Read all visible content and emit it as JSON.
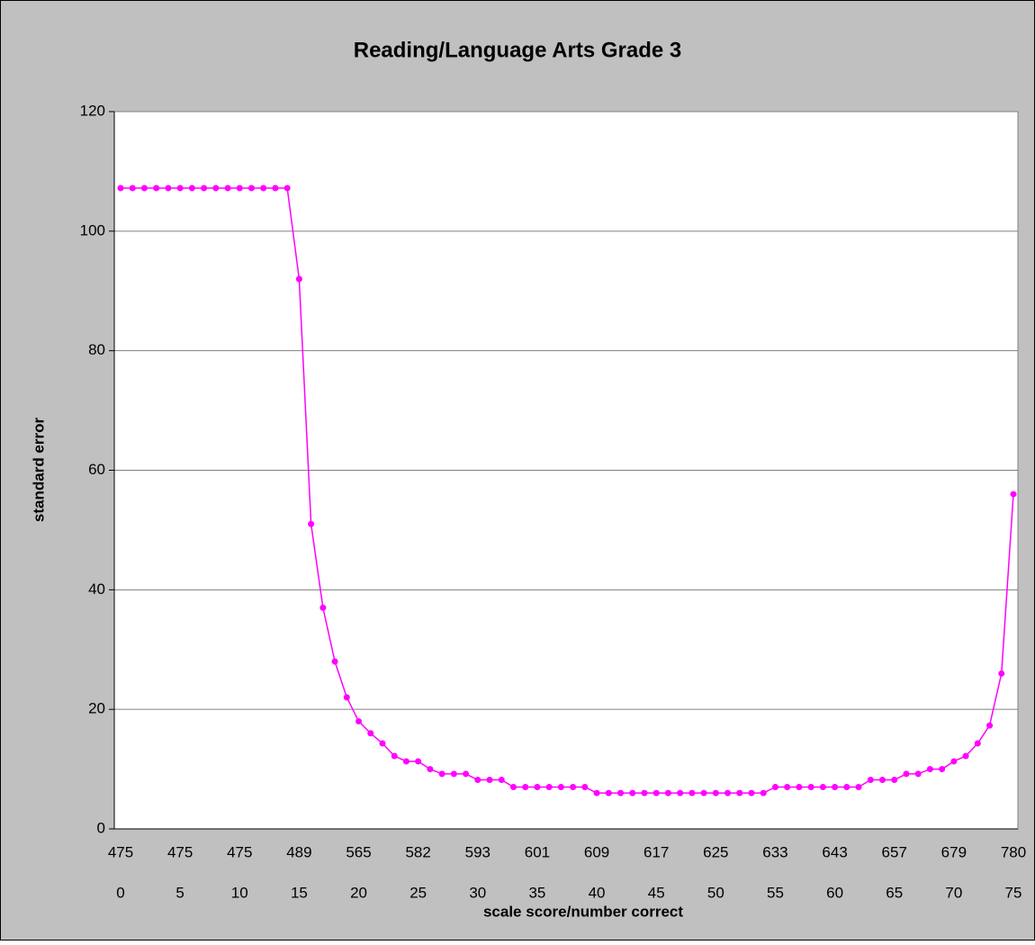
{
  "chart_data": {
    "type": "line",
    "title": "Reading/Language Arts Grade 3",
    "y_label": "standard error",
    "x_label": "scale score/number correct",
    "categories": [
      "475",
      null,
      null,
      null,
      null,
      "475",
      null,
      null,
      null,
      null,
      "475",
      null,
      null,
      null,
      null,
      "489",
      null,
      null,
      null,
      null,
      "565",
      null,
      null,
      null,
      null,
      "582",
      null,
      null,
      null,
      null,
      "593",
      null,
      null,
      null,
      null,
      "601",
      null,
      null,
      null,
      null,
      "609",
      null,
      null,
      null,
      null,
      "617",
      null,
      null,
      null,
      null,
      "625",
      null,
      null,
      null,
      null,
      "633",
      null,
      null,
      null,
      null,
      "643",
      null,
      null,
      null,
      null,
      "657",
      null,
      null,
      null,
      null,
      "679",
      null,
      null,
      null,
      null,
      "780"
    ],
    "subcategories": [
      "0",
      null,
      null,
      null,
      null,
      "5",
      null,
      null,
      null,
      null,
      "10",
      null,
      null,
      null,
      null,
      "15",
      null,
      null,
      null,
      null,
      "20",
      null,
      null,
      null,
      null,
      "25",
      null,
      null,
      null,
      null,
      "30",
      null,
      null,
      null,
      null,
      "35",
      null,
      null,
      null,
      null,
      "40",
      null,
      null,
      null,
      null,
      "45",
      null,
      null,
      null,
      null,
      "50",
      null,
      null,
      null,
      null,
      "55",
      null,
      null,
      null,
      null,
      "60",
      null,
      null,
      null,
      null,
      "65",
      null,
      null,
      null,
      null,
      "70",
      null,
      null,
      null,
      null,
      "75"
    ],
    "values": [
      107.2,
      107.2,
      107.2,
      107.2,
      107.2,
      107.2,
      107.2,
      107.2,
      107.2,
      107.2,
      107.2,
      107.2,
      107.2,
      107.2,
      107.2,
      92,
      51,
      37,
      28,
      22,
      18,
      16,
      14.3,
      12.2,
      11.3,
      11.3,
      10,
      9.2,
      9.2,
      9.2,
      8.2,
      8.2,
      8.2,
      7,
      7,
      7,
      7,
      7,
      7,
      7,
      6,
      6,
      6,
      6,
      6,
      6,
      6,
      6,
      6,
      6,
      6,
      6,
      6,
      6,
      6,
      7,
      7,
      7,
      7,
      7,
      7,
      7,
      7,
      8.2,
      8.2,
      8.2,
      9.2,
      9.2,
      10,
      10,
      11.3,
      12.2,
      14.3,
      17.3,
      26,
      56
    ],
    "color": "#ff00ff",
    "ylim": [
      0,
      120
    ],
    "yticks": [
      0,
      20,
      40,
      60,
      80,
      100,
      120
    ],
    "grid": true
  }
}
